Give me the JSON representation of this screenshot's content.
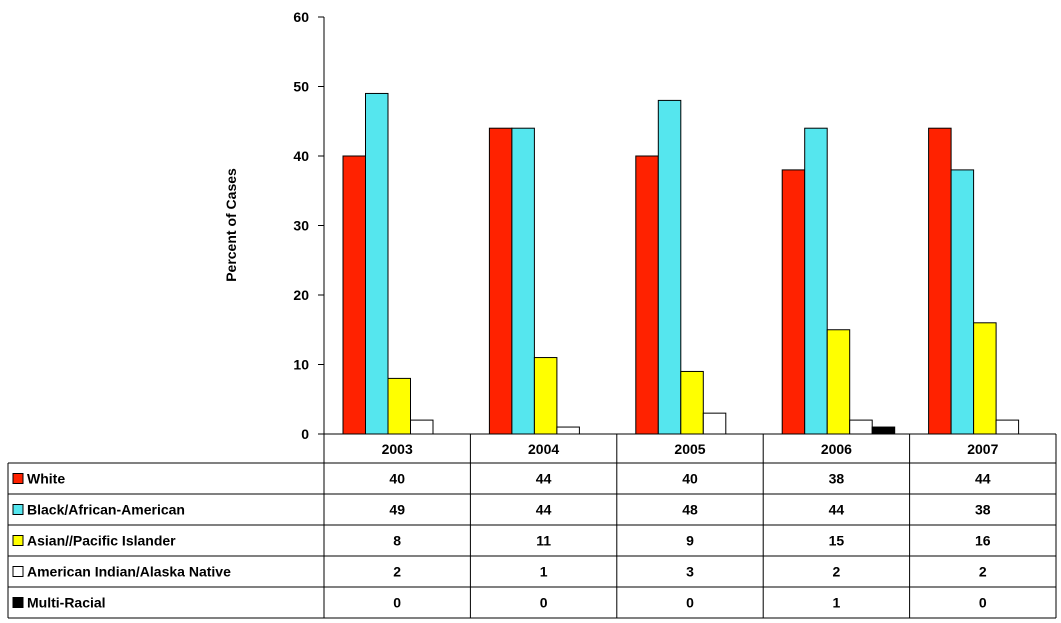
{
  "chart_data": {
    "type": "bar",
    "ylabel": "Percent of Cases",
    "ylim": [
      0,
      60
    ],
    "yticks": [
      0,
      10,
      20,
      30,
      40,
      50,
      60
    ],
    "grid": false,
    "legend": "data-table",
    "categories": [
      "2003",
      "2004",
      "2005",
      "2006",
      "2007"
    ],
    "series": [
      {
        "name": "White",
        "color": "#ff2200",
        "values": [
          40,
          44,
          40,
          38,
          44
        ]
      },
      {
        "name": "Black/African-American",
        "color": "#55e6ee",
        "values": [
          49,
          44,
          48,
          44,
          38
        ]
      },
      {
        "name": "Asian//Pacific Islander",
        "color": "#ffff00",
        "values": [
          8,
          11,
          9,
          15,
          16
        ]
      },
      {
        "name": "American Indian/Alaska Native",
        "color": "#ffffff",
        "values": [
          2,
          1,
          3,
          2,
          2
        ]
      },
      {
        "name": "Multi-Racial",
        "color": "#000000",
        "values": [
          0,
          0,
          0,
          1,
          0
        ]
      }
    ]
  }
}
